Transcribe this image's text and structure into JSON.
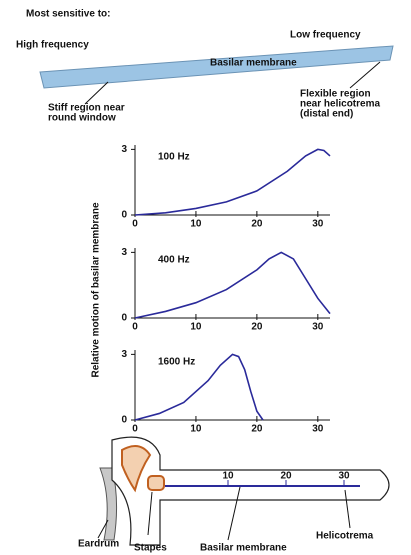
{
  "header": {
    "title": "Most sensitive to:",
    "high": "High frequency",
    "low": "Low frequency",
    "membrane": "Basilar membrane",
    "stiff": [
      "Stiff region near",
      "round window"
    ],
    "flexible": [
      "Flexible region",
      "near helicotrema",
      "(distal end)"
    ]
  },
  "y_axis_label": "Relative motion of basilar membrane",
  "chart_data": [
    {
      "type": "line",
      "title": "100 Hz",
      "color": "#2a2a9a",
      "x": [
        0,
        5,
        10,
        15,
        20,
        25,
        28,
        30,
        31,
        32
      ],
      "values": [
        0,
        0.1,
        0.3,
        0.6,
        1.1,
        2.0,
        2.7,
        3.0,
        2.95,
        2.7
      ],
      "xlim": [
        0,
        32
      ],
      "ylim": [
        0,
        3.2
      ],
      "xticks": [
        0,
        10,
        20,
        30
      ],
      "yticks": [
        0,
        3
      ]
    },
    {
      "type": "line",
      "title": "400 Hz",
      "color": "#2a2a9a",
      "x": [
        0,
        5,
        10,
        15,
        20,
        22,
        24,
        26,
        28,
        30,
        32
      ],
      "values": [
        0,
        0.3,
        0.7,
        1.3,
        2.2,
        2.7,
        3.0,
        2.7,
        1.8,
        0.9,
        0.2
      ],
      "xlim": [
        0,
        32
      ],
      "ylim": [
        0,
        3.2
      ],
      "xticks": [
        0,
        10,
        20,
        30
      ],
      "yticks": [
        0,
        3
      ]
    },
    {
      "type": "line",
      "title": "1600 Hz",
      "color": "#2a2a9a",
      "x": [
        0,
        4,
        8,
        12,
        14,
        16,
        17,
        18,
        19,
        20,
        21
      ],
      "values": [
        0,
        0.3,
        0.8,
        1.8,
        2.5,
        3.0,
        2.9,
        2.3,
        1.3,
        0.4,
        0
      ],
      "xlim": [
        0,
        32
      ],
      "ylim": [
        0,
        3.2
      ],
      "xticks": [
        0,
        10,
        20,
        30
      ],
      "yticks": [
        0,
        3
      ]
    }
  ],
  "cochlea": {
    "scale_ticks": [
      10,
      20,
      30
    ],
    "eardrum": "Eardrum",
    "stapes": "Stapes",
    "membrane": "Basilar membrane",
    "helicotrema": "Helicotrema"
  }
}
